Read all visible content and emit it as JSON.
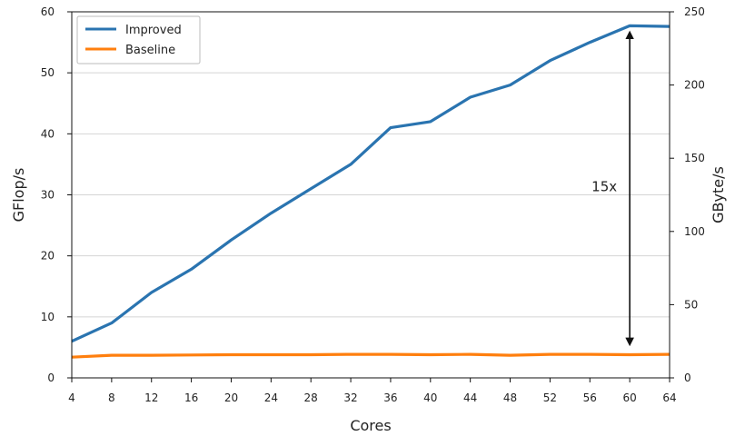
{
  "chart_data": {
    "type": "line",
    "title": "",
    "xlabel": "Cores",
    "ylabel": "GFlop/s",
    "y2label": "GByte/s",
    "x": [
      4,
      8,
      12,
      16,
      20,
      24,
      28,
      32,
      36,
      40,
      44,
      48,
      52,
      56,
      60,
      64
    ],
    "xlim": [
      4,
      64
    ],
    "ylim": [
      0,
      60
    ],
    "y2lim": [
      0,
      250
    ],
    "xticks": [
      "4",
      "8",
      "12",
      "16",
      "20",
      "24",
      "28",
      "32",
      "36",
      "40",
      "44",
      "48",
      "52",
      "56",
      "60",
      "64"
    ],
    "yticks": [
      "0",
      "10",
      "20",
      "30",
      "40",
      "50",
      "60"
    ],
    "y2ticks": [
      "0",
      "50",
      "100",
      "150",
      "200",
      "250"
    ],
    "grid": "horizontal",
    "legend_position": "top-left",
    "series": [
      {
        "name": "Improved",
        "color": "#2a74b0",
        "values": [
          6,
          9,
          14,
          17.8,
          22.6,
          27,
          31,
          35,
          41,
          42,
          46,
          48,
          52,
          55,
          57.7,
          57.6
        ]
      },
      {
        "name": "Baseline",
        "color": "#ff7f0e",
        "values": [
          3.4,
          3.7,
          3.7,
          3.75,
          3.8,
          3.8,
          3.8,
          3.85,
          3.85,
          3.8,
          3.85,
          3.7,
          3.85,
          3.85,
          3.8,
          3.85
        ]
      }
    ],
    "annotations": [
      {
        "text": "15x",
        "arrow_x": 60,
        "arrow_y_from": 5,
        "arrow_y_to": 57.7
      }
    ]
  }
}
